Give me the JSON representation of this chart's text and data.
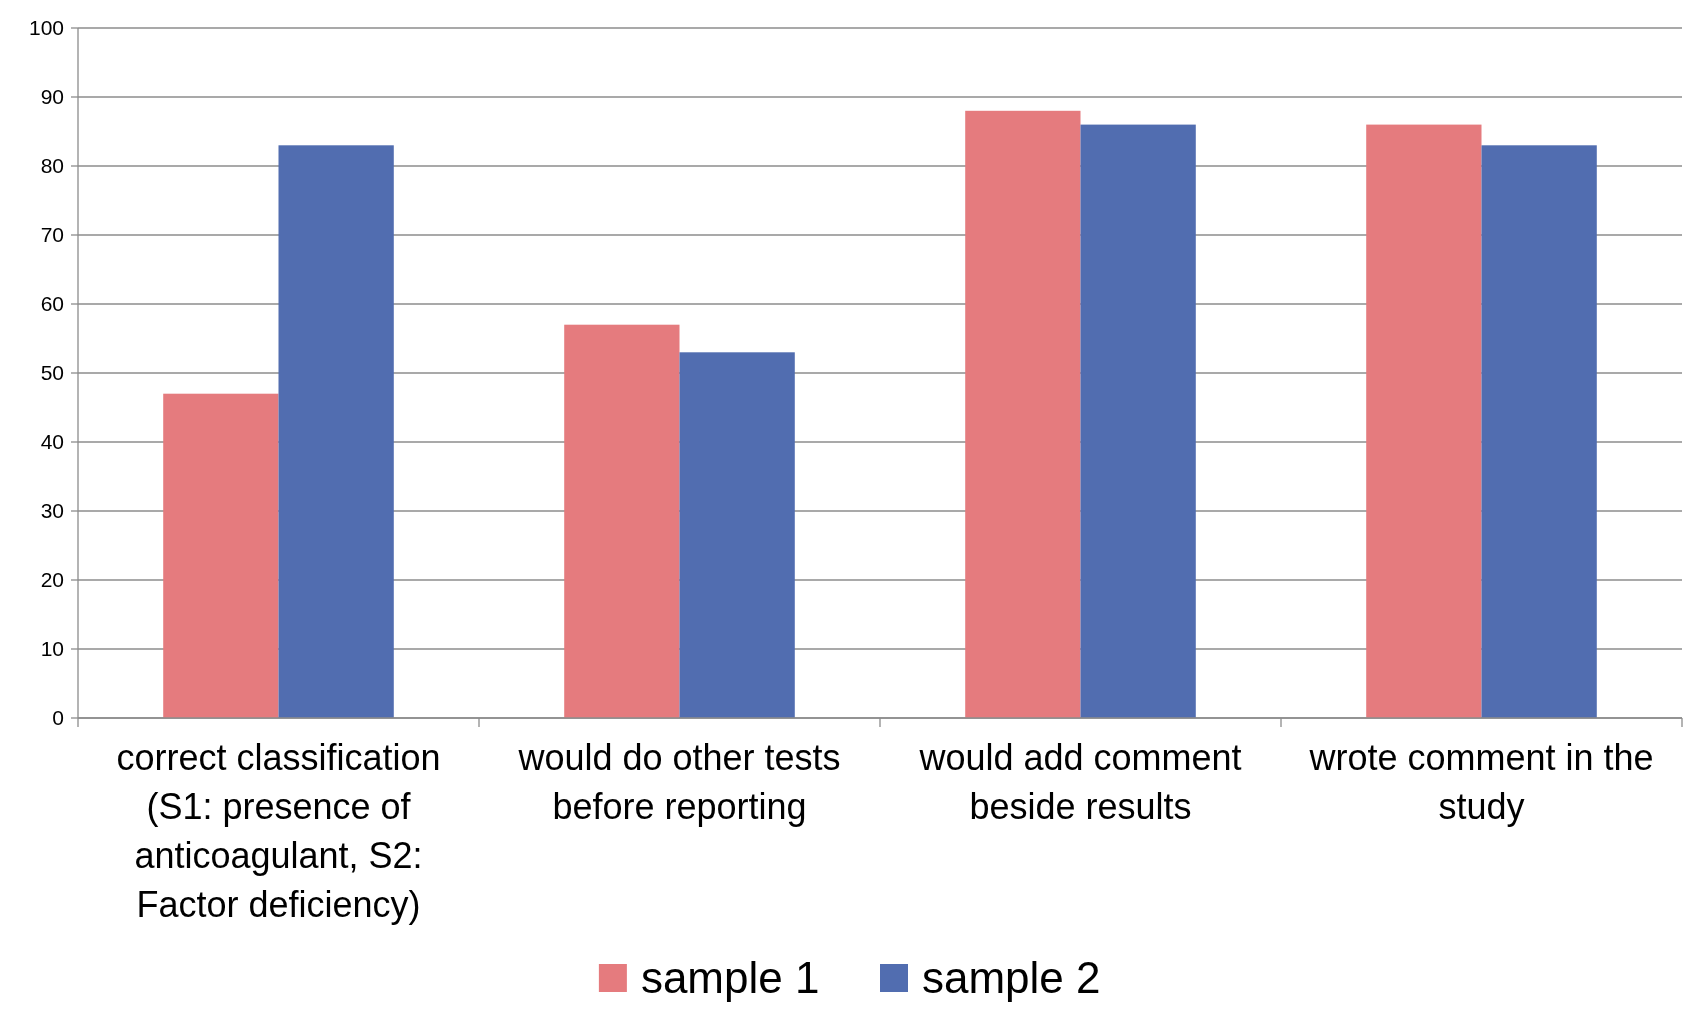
{
  "chart_data": {
    "type": "bar",
    "categories": [
      "correct classification (S1: presence of anticoagulant, S2: Factor deficiency)",
      "would do other tests before reporting",
      "would add comment beside results",
      "wrote comment in the study"
    ],
    "series": [
      {
        "name": "sample 1",
        "color": "#e57b7e",
        "values": [
          47,
          57,
          88,
          86
        ]
      },
      {
        "name": "sample 2",
        "color": "#516db0",
        "values": [
          83,
          53,
          86,
          83
        ]
      }
    ],
    "ylim": [
      0,
      100
    ],
    "yticks": [
      0,
      10,
      20,
      30,
      40,
      50,
      60,
      70,
      80,
      90,
      100
    ],
    "grid": "y",
    "legend": "bottom"
  }
}
